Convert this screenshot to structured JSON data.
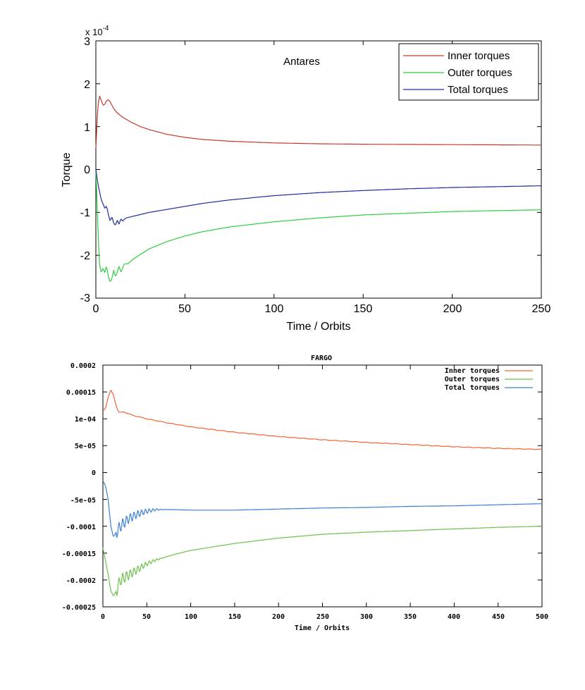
{
  "chart_data": [
    {
      "type": "line",
      "title": "Antares",
      "xlabel": "Time / Orbits",
      "ylabel": "Torque",
      "y_multiplier": "x 10",
      "y_multiplier_exp": "-4",
      "xlim": [
        0,
        250
      ],
      "ylim": [
        -3,
        3
      ],
      "xticks": [
        0,
        50,
        100,
        150,
        200,
        250
      ],
      "xtick_labels": [
        "0",
        "50",
        "100",
        "150",
        "200",
        "250"
      ],
      "yticks": [
        3,
        2,
        1,
        0,
        -1,
        -2,
        -3
      ],
      "ytick_labels": [
        "3",
        "2",
        "1",
        "0",
        "-1",
        "-2",
        "-3"
      ],
      "grid": false,
      "legend_position": "top-right",
      "series": [
        {
          "name": "Inner torques",
          "color": "#c0392b",
          "points": [
            [
              0,
              0.5
            ],
            [
              1,
              1.4
            ],
            [
              2,
              1.72
            ],
            [
              3,
              1.62
            ],
            [
              4,
              1.5
            ],
            [
              5,
              1.52
            ],
            [
              6,
              1.6
            ],
            [
              7,
              1.63
            ],
            [
              8,
              1.58
            ],
            [
              9,
              1.5
            ],
            [
              10,
              1.42
            ],
            [
              12,
              1.32
            ],
            [
              15,
              1.22
            ],
            [
              20,
              1.1
            ],
            [
              25,
              1.0
            ],
            [
              30,
              0.93
            ],
            [
              40,
              0.82
            ],
            [
              50,
              0.75
            ],
            [
              60,
              0.7
            ],
            [
              75,
              0.66
            ],
            [
              100,
              0.62
            ],
            [
              125,
              0.6
            ],
            [
              150,
              0.59
            ],
            [
              175,
              0.585
            ],
            [
              200,
              0.58
            ],
            [
              225,
              0.575
            ],
            [
              250,
              0.57
            ]
          ]
        },
        {
          "name": "Outer torques",
          "color": "#2ecc40",
          "points": [
            [
              0,
              0.0
            ],
            [
              1,
              -1.2
            ],
            [
              2,
              -2.2
            ],
            [
              3,
              -2.4
            ],
            [
              4,
              -2.3
            ],
            [
              5,
              -2.4
            ],
            [
              6,
              -2.25
            ],
            [
              7,
              -2.5
            ],
            [
              8,
              -2.62
            ],
            [
              9,
              -2.55
            ],
            [
              10,
              -2.35
            ],
            [
              11,
              -2.5
            ],
            [
              12,
              -2.4
            ],
            [
              13,
              -2.25
            ],
            [
              14,
              -2.4
            ],
            [
              15,
              -2.3
            ],
            [
              16,
              -2.2
            ],
            [
              18,
              -2.2
            ],
            [
              20,
              -2.12
            ],
            [
              25,
              -1.98
            ],
            [
              30,
              -1.85
            ],
            [
              40,
              -1.68
            ],
            [
              50,
              -1.55
            ],
            [
              60,
              -1.45
            ],
            [
              75,
              -1.34
            ],
            [
              100,
              -1.22
            ],
            [
              125,
              -1.13
            ],
            [
              150,
              -1.06
            ],
            [
              175,
              -1.02
            ],
            [
              200,
              -0.98
            ],
            [
              225,
              -0.96
            ],
            [
              250,
              -0.94
            ]
          ]
        },
        {
          "name": "Total torques",
          "color": "#1f2d9e",
          "points": [
            [
              0,
              0.0
            ],
            [
              1,
              -0.3
            ],
            [
              2,
              -0.5
            ],
            [
              3,
              -0.7
            ],
            [
              4,
              -0.8
            ],
            [
              5,
              -0.9
            ],
            [
              6,
              -0.85
            ],
            [
              7,
              -1.05
            ],
            [
              8,
              -1.2
            ],
            [
              9,
              -1.1
            ],
            [
              10,
              -1.25
            ],
            [
              11,
              -1.3
            ],
            [
              12,
              -1.18
            ],
            [
              13,
              -1.28
            ],
            [
              14,
              -1.15
            ],
            [
              15,
              -1.2
            ],
            [
              17,
              -1.13
            ],
            [
              20,
              -1.1
            ],
            [
              25,
              -1.05
            ],
            [
              30,
              -1.0
            ],
            [
              40,
              -0.93
            ],
            [
              50,
              -0.86
            ],
            [
              60,
              -0.79
            ],
            [
              75,
              -0.71
            ],
            [
              100,
              -0.61
            ],
            [
              125,
              -0.54
            ],
            [
              150,
              -0.49
            ],
            [
              175,
              -0.45
            ],
            [
              200,
              -0.42
            ],
            [
              225,
              -0.4
            ],
            [
              250,
              -0.38
            ]
          ]
        }
      ]
    },
    {
      "type": "line",
      "title": "FARGO",
      "xlabel": "Time / Orbits",
      "ylabel": "",
      "xlim": [
        0,
        500
      ],
      "ylim": [
        -0.00025,
        0.0002
      ],
      "xticks": [
        0,
        50,
        100,
        150,
        200,
        250,
        300,
        350,
        400,
        450,
        500
      ],
      "xtick_labels": [
        "0",
        "50",
        "100",
        "150",
        "200",
        "250",
        "300",
        "350",
        "400",
        "450",
        "500"
      ],
      "yticks": [
        0.0002,
        0.00015,
        0.0001,
        5e-05,
        0,
        -5e-05,
        -0.0001,
        -0.00015,
        -0.0002,
        -0.00025
      ],
      "ytick_labels": [
        "0.0002",
        "0.00015",
        "1e-04",
        "5e-05",
        "0",
        "-5e-05",
        "-0.0001",
        "-0.00015",
        "-0.0002",
        "-0.00025"
      ],
      "grid": false,
      "legend_position": "top-right",
      "series": [
        {
          "name": "Inner torques",
          "color": "#f26430",
          "points": [
            [
              0,
              0.000115
            ],
            [
              3,
              0.00012
            ],
            [
              6,
              0.00014
            ],
            [
              9,
              0.000153
            ],
            [
              12,
              0.000145
            ],
            [
              15,
              0.000125
            ],
            [
              18,
              0.000112
            ],
            [
              21,
              0.000112
            ],
            [
              24,
              0.000113
            ],
            [
              28,
              0.00011
            ],
            [
              35,
              0.000106
            ],
            [
              50,
              0.0001
            ],
            [
              75,
              9.2e-05
            ],
            [
              100,
              8.5e-05
            ],
            [
              150,
              7.5e-05
            ],
            [
              200,
              6.7e-05
            ],
            [
              250,
              6.1e-05
            ],
            [
              300,
              5.6e-05
            ],
            [
              350,
              5.2e-05
            ],
            [
              400,
              4.8e-05
            ],
            [
              450,
              4.5e-05
            ],
            [
              500,
              4.3e-05
            ]
          ]
        },
        {
          "name": "Outer torques",
          "color": "#6cc04a",
          "points": [
            [
              0,
              -0.00014
            ],
            [
              3,
              -0.000165
            ],
            [
              6,
              -0.00019
            ],
            [
              9,
              -0.00022
            ],
            [
              12,
              -0.00023
            ],
            [
              15,
              -0.000222
            ],
            [
              20,
              -0.0002
            ],
            [
              30,
              -0.00019
            ],
            [
              40,
              -0.00018
            ],
            [
              50,
              -0.00017
            ],
            [
              60,
              -0.000163
            ],
            [
              80,
              -0.000153
            ],
            [
              100,
              -0.000145
            ],
            [
              150,
              -0.000132
            ],
            [
              200,
              -0.000122
            ],
            [
              250,
              -0.000115
            ],
            [
              300,
              -0.000111
            ],
            [
              350,
              -0.000108
            ],
            [
              400,
              -0.000105
            ],
            [
              450,
              -0.000102
            ],
            [
              500,
              -0.0001
            ]
          ]
        },
        {
          "name": "Total torques",
          "color": "#3a7fd6",
          "points": [
            [
              0,
              -1.5e-05
            ],
            [
              3,
              -2.5e-05
            ],
            [
              6,
              -5e-05
            ],
            [
              9,
              -0.0001
            ],
            [
              12,
              -0.00012
            ],
            [
              15,
              -0.000112
            ],
            [
              20,
              -0.0001
            ],
            [
              30,
              -8.5e-05
            ],
            [
              40,
              -7.7e-05
            ],
            [
              50,
              -7.2e-05
            ],
            [
              60,
              -6.9e-05
            ],
            [
              80,
              -6.9e-05
            ],
            [
              100,
              -7e-05
            ],
            [
              150,
              -7e-05
            ],
            [
              200,
              -6.8e-05
            ],
            [
              250,
              -6.6e-05
            ],
            [
              300,
              -6.5e-05
            ],
            [
              350,
              -6.3e-05
            ],
            [
              400,
              -6.2e-05
            ],
            [
              450,
              -6e-05
            ],
            [
              500,
              -5.8e-05
            ]
          ]
        }
      ]
    }
  ]
}
